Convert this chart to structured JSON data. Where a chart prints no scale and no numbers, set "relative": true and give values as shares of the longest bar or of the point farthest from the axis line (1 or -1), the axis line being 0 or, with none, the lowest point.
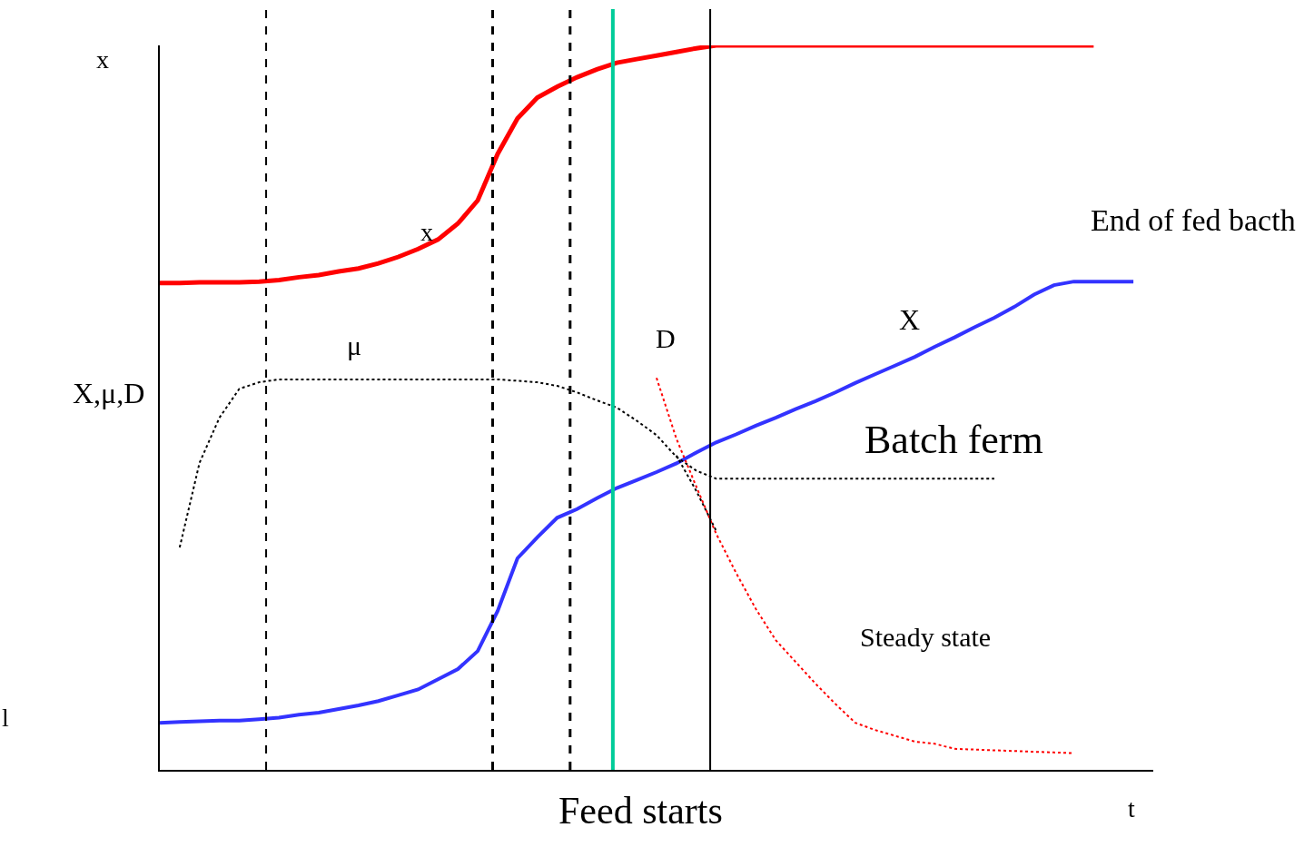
{
  "chart_data": {
    "type": "line",
    "relative": true,
    "xlabel": "t",
    "ylabel": "X,μ,D",
    "marker": "none",
    "categories": [
      null,
      null,
      null,
      null,
      null,
      null,
      null,
      null,
      null,
      null,
      null,
      null,
      null,
      null,
      null,
      null,
      null,
      null,
      null,
      null,
      null,
      null,
      null,
      null,
      null,
      null,
      null,
      null,
      null,
      null,
      null,
      null,
      null,
      null,
      null,
      null,
      null,
      null,
      null,
      null,
      null,
      null,
      null,
      null,
      null,
      null,
      null,
      null,
      null,
      null,
      null
    ],
    "series": [
      {
        "color": "#ff0000",
        "line_style": "solid",
        "values": [
          0.672,
          0.672,
          0.673,
          0.673,
          0.673,
          0.674,
          0.676,
          0.68,
          0.683,
          0.688,
          0.692,
          0.699,
          0.708,
          0.719,
          0.732,
          0.754,
          0.786,
          0.85,
          0.899,
          0.928,
          0.943,
          0.956,
          0.967,
          0.976,
          0.981,
          0.986,
          0.991,
          0.996,
          1.0,
          1.0,
          1.0,
          1.0,
          1.0,
          1.0,
          1.0,
          1.0,
          1.0,
          1.0,
          1.0,
          1.0,
          1.0,
          1.0,
          1.0,
          1.0,
          1.0,
          1.0,
          1.0,
          1.0,
          null,
          null,
          null
        ]
      },
      {
        "color": "#3333ff",
        "line_style": "solid",
        "values": [
          0.065,
          0.066,
          0.067,
          0.068,
          0.068,
          0.07,
          0.072,
          0.076,
          0.079,
          0.084,
          0.089,
          0.095,
          0.103,
          0.111,
          0.125,
          0.139,
          0.164,
          0.219,
          0.292,
          0.321,
          0.348,
          0.36,
          0.375,
          0.389,
          0.4,
          0.411,
          0.423,
          0.438,
          0.452,
          0.463,
          0.475,
          0.486,
          0.498,
          0.509,
          0.521,
          0.534,
          0.546,
          0.558,
          0.57,
          0.584,
          0.597,
          0.611,
          0.624,
          0.639,
          0.656,
          0.669,
          0.674,
          0.674,
          0.674,
          0.674,
          null
        ]
      },
      {
        "color": "#000000",
        "line_style": "dotted",
        "values": [
          null,
          0.307,
          0.424,
          0.486,
          0.526,
          0.535,
          0.539,
          0.539,
          0.539,
          0.539,
          0.539,
          0.539,
          0.539,
          0.539,
          0.539,
          0.539,
          0.539,
          0.539,
          0.537,
          0.535,
          0.53,
          0.521,
          0.51,
          0.5,
          0.482,
          0.462,
          0.432,
          0.413,
          0.402,
          0.402,
          0.402,
          0.402,
          0.402,
          0.402,
          0.402,
          0.402,
          0.402,
          0.402,
          0.402,
          0.402,
          0.402,
          0.402,
          0.402,
          null,
          null,
          null,
          null,
          null,
          null,
          null,
          null
        ]
      },
      {
        "color": "#000000",
        "line_style": "dotted",
        "values": [
          null,
          null,
          null,
          null,
          null,
          null,
          null,
          null,
          null,
          null,
          null,
          null,
          null,
          null,
          null,
          null,
          null,
          null,
          null,
          null,
          null,
          null,
          null,
          null,
          null,
          null,
          0.434,
          0.385,
          0.33,
          null,
          null,
          null,
          null,
          null,
          null,
          null,
          null,
          null,
          null,
          null,
          null,
          null,
          null,
          null,
          null,
          null,
          null,
          null,
          null,
          null,
          null
        ]
      },
      {
        "color": "#ff0000",
        "line_style": "dotted",
        "values": [
          null,
          null,
          null,
          null,
          null,
          null,
          null,
          null,
          null,
          null,
          null,
          null,
          null,
          null,
          null,
          null,
          null,
          null,
          null,
          null,
          null,
          null,
          null,
          null,
          null,
          0.541,
          0.457,
          0.391,
          0.326,
          0.272,
          0.222,
          0.179,
          0.149,
          0.119,
          0.091,
          0.065,
          0.055,
          0.047,
          0.039,
          0.036,
          0.029,
          0.028,
          0.027,
          0.026,
          0.025,
          0.024,
          0.023,
          null,
          null,
          null,
          null
        ]
      }
    ],
    "annotations": [
      "x",
      "l",
      "End of fed bacth",
      "x",
      "μ",
      "D",
      "X",
      "Batch ferm",
      "Steady state",
      "Feed starts"
    ]
  }
}
